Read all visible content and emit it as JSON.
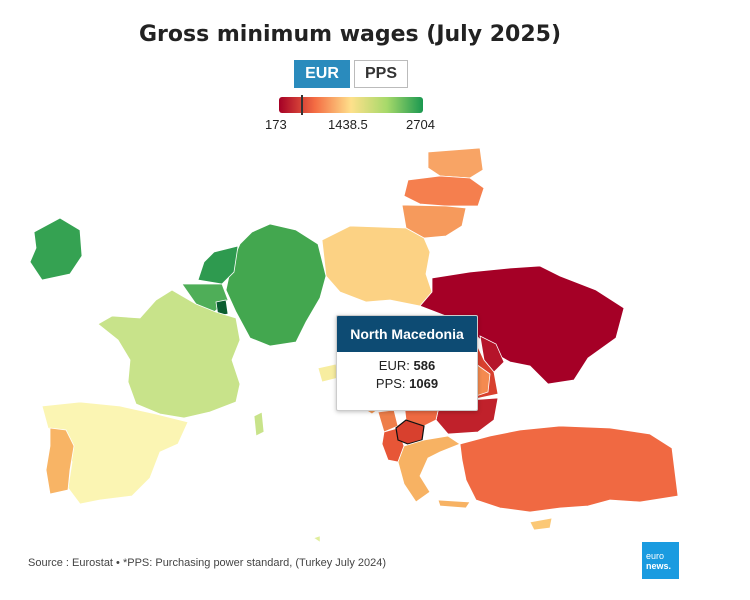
{
  "title": "Gross minimum wages (July 2025)",
  "toggle": {
    "eur_label": "EUR",
    "pps_label": "PPS",
    "selected": "EUR"
  },
  "legend": {
    "min_label": "173",
    "mid_label": "1438.5",
    "max_label": "2704",
    "min": 173,
    "mid": 1438.5,
    "max": 2704,
    "marker_value": 586,
    "colors": [
      "#a50026",
      "#f46d43",
      "#fee08b",
      "#a6d96a",
      "#1a9850"
    ]
  },
  "tooltip": {
    "country": "North Macedonia",
    "eur_label": "EUR:",
    "eur_value": "586",
    "pps_label": "PPS:",
    "pps_value": "1069"
  },
  "map_colors": {
    "ireland": "#35a252",
    "germany": "#43a74f",
    "netherlands": "#2e9a4f",
    "belgium": "#4fae58",
    "luxembourg": "#0b5e30",
    "france": "#c8e38a",
    "spain": "#fbf5b3",
    "portugal": "#f8b465",
    "poland": "#fcd284",
    "lithuania": "#f69a5c",
    "latvia": "#f57f4e",
    "estonia": "#f8a465",
    "ukraine": "#a50026",
    "romania": "#d8402e",
    "bulgaria": "#c0212b",
    "moldova": "#b5142a",
    "hungary": "#f48a50",
    "croatia": "#f79c58",
    "slovenia": "#f7eda0",
    "serbia": "#ee6a42",
    "north_macedonia": "#d8402e",
    "albania": "#e75637",
    "montenegro": "#ee7e4a",
    "greece": "#f7b263",
    "turkey": "#f06942",
    "cyprus": "#fbc876",
    "malta": "#e0ee9b",
    "corsica": "#c8e38a",
    "sardinia": "#f1f1f1",
    "sicily": "#f1f1f1"
  },
  "footer": "Source : Eurostat • *PPS: Purchasing power standard, (Turkey July 2024)",
  "logo": {
    "line1": "euro",
    "line2": "news."
  }
}
